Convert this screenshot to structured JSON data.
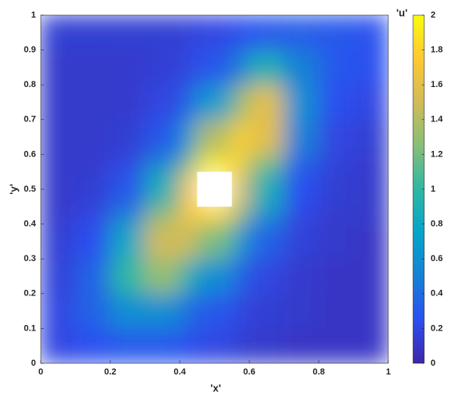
{
  "chart_data": {
    "type": "heatmap",
    "xlabel": "'x'",
    "ylabel": "'y'",
    "colorbar_label": "'u'",
    "x_edges": [
      0,
      0.1,
      0.2,
      0.3,
      0.4,
      0.45,
      0.55,
      0.6,
      0.7,
      0.8,
      0.9,
      1
    ],
    "y_edges": [
      0,
      0.1,
      0.2,
      0.3,
      0.4,
      0.45,
      0.55,
      0.6,
      0.7,
      0.8,
      0.9,
      1
    ],
    "z": [
      [
        0.2,
        0.25,
        0.3,
        0.3,
        0.25,
        0.2,
        0.15,
        0.12,
        0.1,
        0.1,
        0.1
      ],
      [
        0.2,
        0.35,
        0.6,
        0.6,
        0.4,
        0.3,
        0.2,
        0.15,
        0.12,
        0.1,
        0.1
      ],
      [
        0.17,
        0.35,
        1.0,
        1.3,
        0.9,
        0.6,
        0.35,
        0.2,
        0.13,
        0.1,
        0.1
      ],
      [
        0.15,
        0.25,
        0.8,
        1.5,
        1.5,
        1.2,
        0.7,
        0.35,
        0.17,
        0.12,
        0.1
      ],
      [
        0.13,
        0.2,
        0.5,
        1.3,
        1.75,
        1.8,
        1.3,
        0.6,
        0.2,
        0.13,
        0.12
      ],
      [
        0.12,
        0.15,
        0.3,
        0.9,
        1.7,
        null,
        1.6,
        0.9,
        0.25,
        0.15,
        0.12
      ],
      [
        0.12,
        0.13,
        0.2,
        0.55,
        1.2,
        1.9,
        1.8,
        1.2,
        0.35,
        0.17,
        0.13
      ],
      [
        0.12,
        0.12,
        0.15,
        0.3,
        0.7,
        1.4,
        1.8,
        1.6,
        0.5,
        0.2,
        0.15
      ],
      [
        0.12,
        0.12,
        0.13,
        0.2,
        0.35,
        0.7,
        1.3,
        1.6,
        0.6,
        0.25,
        0.2
      ],
      [
        0.12,
        0.12,
        0.13,
        0.15,
        0.2,
        0.3,
        0.5,
        0.9,
        0.5,
        0.3,
        0.25
      ],
      [
        0.15,
        0.15,
        0.15,
        0.15,
        0.17,
        0.2,
        0.25,
        0.3,
        0.32,
        0.3,
        0.27
      ]
    ],
    "xlim": [
      0,
      1
    ],
    "xticks": [
      0,
      0.2,
      0.4,
      0.6,
      0.8,
      1
    ],
    "ylim": [
      0,
      1
    ],
    "yticks": [
      0,
      0.1,
      0.2,
      0.3,
      0.4,
      0.5,
      0.6,
      0.7,
      0.8,
      0.9,
      1
    ],
    "zlim": [
      0,
      2
    ],
    "zticks": [
      0,
      0.2,
      0.4,
      0.6,
      0.8,
      1,
      1.2,
      1.4,
      1.6,
      1.8,
      2
    ],
    "colormap": [
      "#3e26a8",
      "#2c4ff0",
      "#1481d6",
      "#06a4ca",
      "#2eb7a4",
      "#87bf77",
      "#d1bb59",
      "#fec832",
      "#f9fb0e"
    ]
  }
}
